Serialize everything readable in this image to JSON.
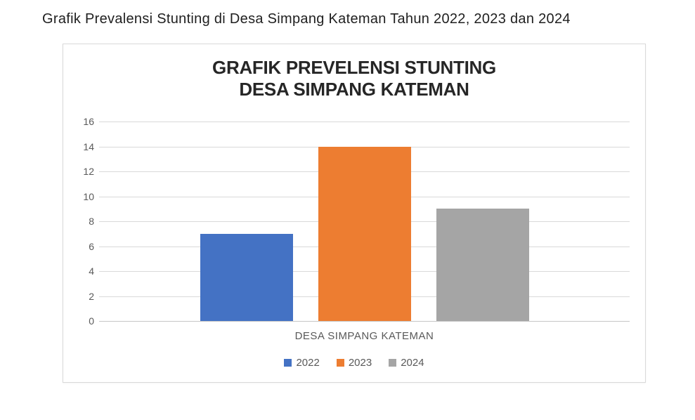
{
  "page": {
    "caption": "Grafik Prevalensi Stunting di Desa Simpang Kateman Tahun 2022, 2023 dan 2024"
  },
  "chart_data": {
    "type": "bar",
    "title": "GRAFIK PREVELENSI STUNTING DESA SIMPANG KATEMAN",
    "title_line1": "GRAFIK PREVELENSI STUNTING",
    "title_line2": "DESA SIMPANG KATEMAN",
    "categories": [
      "DESA SIMPANG KATEMAN"
    ],
    "series": [
      {
        "name": "2022",
        "values": [
          7
        ],
        "color": "#4472C4"
      },
      {
        "name": "2023",
        "values": [
          14
        ],
        "color": "#ED7D31"
      },
      {
        "name": "2024",
        "values": [
          9
        ],
        "color": "#A5A5A5"
      }
    ],
    "xlabel": "DESA SIMPANG KATEMAN",
    "ylabel": "",
    "ylim": [
      0,
      16
    ],
    "ytick_step": 2,
    "yticks": [
      0,
      2,
      4,
      6,
      8,
      10,
      12,
      14,
      16
    ],
    "grid": true,
    "legend_position": "bottom",
    "colors": {
      "grid": "#D9D9D9",
      "zero_line": "#C6C6C6",
      "axis_text": "#595959",
      "title_text": "#262626",
      "frame_border": "#D9D9D9",
      "caption_text": "#1F1F1F",
      "background": "#FFFFFF"
    }
  }
}
